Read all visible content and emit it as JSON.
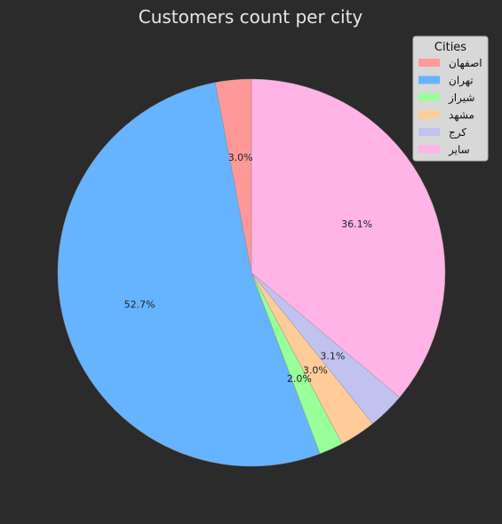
{
  "chart_data": {
    "type": "pie",
    "title": "Customers count per city",
    "legend": {
      "title": "Cities",
      "placement": "top-right"
    },
    "start_angle_deg": 90,
    "direction": "counterclockwise",
    "slices": [
      {
        "label": "اصفهان",
        "value": 3.0,
        "pct_label": "3.0%",
        "color": "#ff9999"
      },
      {
        "label": "تهران",
        "value": 52.7,
        "pct_label": "52.7%",
        "color": "#66b3ff"
      },
      {
        "label": "شیراز",
        "value": 2.0,
        "pct_label": "2.0%",
        "color": "#99ff99"
      },
      {
        "label": "مشهد",
        "value": 3.0,
        "pct_label": "3.0%",
        "color": "#ffcc99"
      },
      {
        "label": "کرج",
        "value": 3.1,
        "pct_label": "3.1%",
        "color": "#c2c2f0"
      },
      {
        "label": "سایر",
        "value": 36.1,
        "pct_label": "36.1%",
        "color": "#ffb3e6"
      }
    ]
  }
}
